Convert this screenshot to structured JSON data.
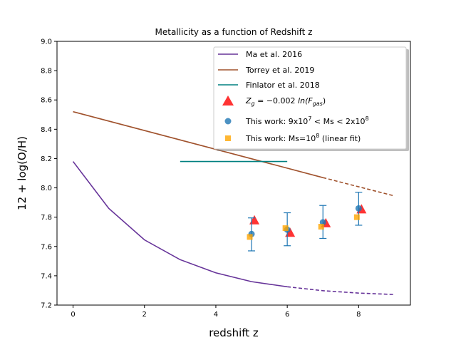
{
  "chart_data": {
    "type": "line",
    "title": "Metallicity as a function of Redshift z",
    "xlabel": "redshift z",
    "ylabel": "12 + log(O/H)",
    "xlim": [
      -0.45,
      9.45
    ],
    "ylim": [
      7.2,
      9.0
    ],
    "xticks": [
      0,
      2,
      4,
      6,
      8
    ],
    "xtick_labels": [
      "0",
      "2",
      "4",
      "6",
      "8"
    ],
    "yticks": [
      7.2,
      7.4,
      7.6,
      7.8,
      8.0,
      8.2,
      8.4,
      8.6,
      8.8,
      9.0
    ],
    "ytick_labels": [
      "7.2",
      "7.4",
      "7.6",
      "7.8",
      "8.0",
      "8.2",
      "8.4",
      "8.6",
      "8.8",
      "9.0"
    ],
    "grid": false,
    "legend_position": "top-right",
    "series": [
      {
        "name": "Ma et al. 2016",
        "kind": "line",
        "color": "#663399",
        "x": [
          0,
          1,
          2,
          3,
          4,
          5,
          6
        ],
        "y": [
          8.18,
          7.86,
          7.645,
          7.51,
          7.42,
          7.36,
          7.325
        ],
        "dashed_x": [
          6,
          7,
          8,
          9
        ],
        "dashed_y": [
          7.325,
          7.298,
          7.282,
          7.272
        ]
      },
      {
        "name": "Torrey et al. 2019",
        "kind": "line",
        "color": "#a0522d",
        "x": [
          0,
          7
        ],
        "y": [
          8.52,
          8.07
        ],
        "dashed_x": [
          7,
          9
        ],
        "dashed_y": [
          8.07,
          7.945
        ]
      },
      {
        "name": "Finlator et al. 2018",
        "kind": "line",
        "color": "#008080",
        "x": [
          3,
          6
        ],
        "y": [
          8.18,
          8.18
        ]
      },
      {
        "name": "Z_g = −0.002 ln(F_gas)",
        "kind": "scatter",
        "marker": "triangle",
        "color": "#ff0000",
        "x": [
          5.08,
          6.08,
          7.08,
          8.08
        ],
        "y": [
          7.775,
          7.69,
          7.755,
          7.85
        ]
      },
      {
        "name": "This work: 9x10^7 < Ms < 2x10^8",
        "kind": "scatter",
        "marker": "circle",
        "color": "#1f77b4",
        "x": [
          5.0,
          6.0,
          7.0,
          8.0
        ],
        "y": [
          7.685,
          7.715,
          7.765,
          7.86
        ],
        "yerr_low": [
          7.57,
          7.605,
          7.655,
          7.745
        ],
        "yerr_high": [
          7.795,
          7.83,
          7.88,
          7.97
        ]
      },
      {
        "name": "This work: Ms=10^8 (linear fit)",
        "kind": "scatter",
        "marker": "square",
        "color": "#ffa500",
        "x": [
          4.95,
          5.95,
          6.95,
          7.95
        ],
        "y": [
          7.665,
          7.725,
          7.735,
          7.8
        ]
      }
    ],
    "legend_labels": {
      "ma": "Ma et al. 2016",
      "torrey": "Torrey et al. 2019",
      "finlator": "Finlator et al. 2018",
      "model_prefix": "Z",
      "model_sub": "g",
      "model_mid": " = −0.002 ",
      "model_ln": "ln",
      "model_F": "(F",
      "model_Fsub": "gas",
      "model_close": ")",
      "work1_text": "This work: 9x10",
      "work1_exp1": "7",
      "work1_mid": " < Ms < 2x10",
      "work1_exp2": "8",
      "work2_text": "This work: Ms=10",
      "work2_exp": "8",
      "work2_tail": " (linear fit)"
    }
  }
}
